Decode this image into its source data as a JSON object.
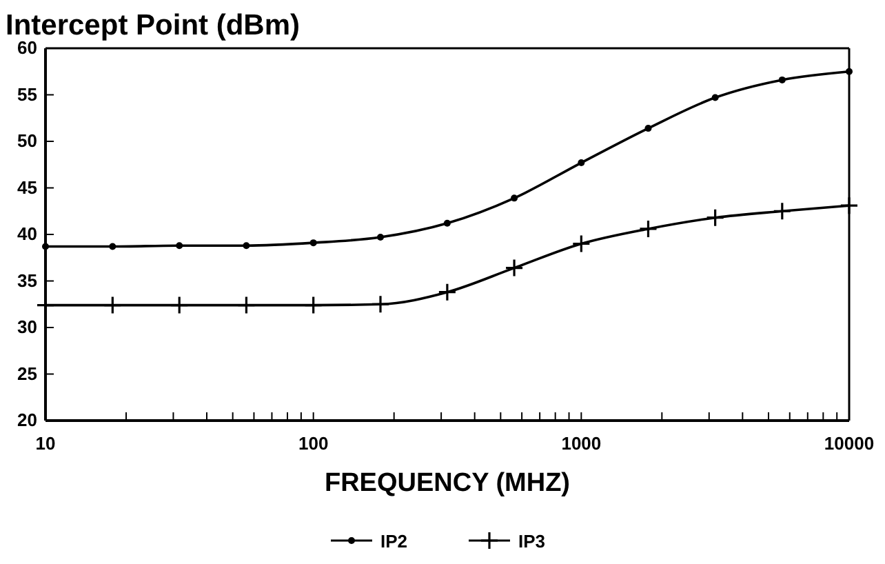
{
  "chart_data": {
    "type": "line",
    "title": "Intercept Point (dBm)",
    "xlabel": "FREQUENCY (MHZ)",
    "log": "x",
    "x": [
      10,
      17.8,
      31.6,
      56.2,
      100,
      178,
      316,
      562,
      1000,
      1778,
      3162,
      5623,
      10000
    ],
    "series": [
      {
        "name": "IP2",
        "color": "#000000",
        "marker": "circle",
        "values": [
          38.7,
          38.7,
          38.8,
          38.8,
          39.1,
          39.7,
          41.2,
          43.9,
          47.7,
          51.4,
          54.7,
          56.6,
          57.5
        ]
      },
      {
        "name": "IP3",
        "color": "#000000",
        "marker": "cross",
        "values": [
          32.4,
          32.4,
          32.4,
          32.4,
          32.4,
          32.5,
          33.8,
          36.4,
          39.0,
          40.6,
          41.8,
          42.5,
          43.1
        ]
      }
    ],
    "xlim": [
      10,
      10000
    ],
    "xticks": [
      10,
      {
        "value": 20,
        "label": null
      },
      {
        "value": 30,
        "label": null
      },
      {
        "value": 40,
        "label": null
      },
      {
        "value": 50,
        "label": null
      },
      {
        "value": 60,
        "label": null
      },
      {
        "value": 70,
        "label": null
      },
      {
        "value": 80,
        "label": null
      },
      {
        "value": 90,
        "label": null
      },
      100,
      {
        "value": 200,
        "label": null
      },
      {
        "value": 300,
        "label": null
      },
      {
        "value": 400,
        "label": null
      },
      {
        "value": 500,
        "label": null
      },
      {
        "value": 600,
        "label": null
      },
      {
        "value": 700,
        "label": null
      },
      {
        "value": 800,
        "label": null
      },
      {
        "value": 900,
        "label": null
      },
      1000,
      {
        "value": 2000,
        "label": null
      },
      {
        "value": 3000,
        "label": null
      },
      {
        "value": 4000,
        "label": null
      },
      {
        "value": 5000,
        "label": null
      },
      {
        "value": 6000,
        "label": null
      },
      {
        "value": 7000,
        "label": null
      },
      {
        "value": 8000,
        "label": null
      },
      {
        "value": 9000,
        "label": null
      },
      10000
    ],
    "ylim": [
      20,
      60
    ],
    "yticks": [
      20,
      25,
      30,
      35,
      40,
      45,
      50,
      55,
      60
    ],
    "legend": "bottom",
    "line_style": "solid"
  }
}
